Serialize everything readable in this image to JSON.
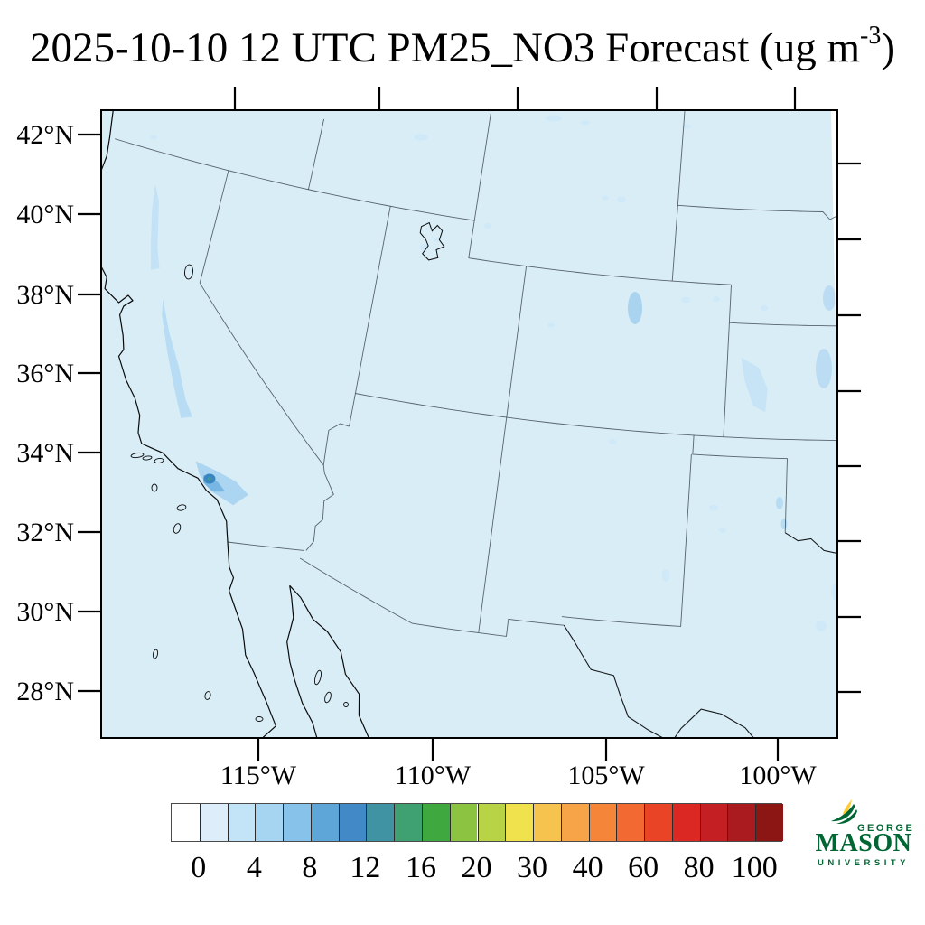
{
  "title": {
    "prefix": "2025-10-10 12 UTC PM25_NO3 Forecast (ug m",
    "sup": "-3",
    "suffix": ")"
  },
  "map": {
    "lat_labels": [
      "42°N",
      "40°N",
      "38°N",
      "36°N",
      "34°N",
      "32°N",
      "30°N",
      "28°N"
    ],
    "lon_labels": [
      "115°W",
      "110°W",
      "105°W",
      "100°W"
    ],
    "background_color": "#d9edf7",
    "region": "Southwestern United States and northern Mexico"
  },
  "colorbar": {
    "tick_labels": [
      "0",
      "4",
      "8",
      "12",
      "16",
      "20",
      "30",
      "40",
      "60",
      "80",
      "100"
    ],
    "levels": [
      0,
      2,
      4,
      6,
      8,
      10,
      12,
      14,
      16,
      18,
      20,
      25,
      30,
      35,
      40,
      50,
      60,
      70,
      80,
      90,
      100
    ],
    "colors": [
      "#ffffff",
      "#ddeefa",
      "#c3e3f6",
      "#a6d5f1",
      "#86c2e9",
      "#5fa6d8",
      "#4289c8",
      "#3f93a2",
      "#3fa172",
      "#3fa83f",
      "#8cc441",
      "#b9d347",
      "#f0e24d",
      "#f6c44e",
      "#f7a348",
      "#f58538",
      "#f26a31",
      "#ea4426",
      "#dc2823",
      "#c41f23",
      "#a91b1f",
      "#8c1613"
    ]
  },
  "logo": {
    "line1": "GEORGE",
    "line2": "MASON",
    "line3": "UNIVERSITY",
    "green": "#006633",
    "gold": "#ffcc33"
  },
  "chart_data": {
    "type": "map",
    "title": "2025-10-10 12 UTC PM25_NO3 Forecast (ug m-3)",
    "variable": "PM25_NO3",
    "units": "ug m-3",
    "forecast_time": "2025-10-10 12 UTC",
    "lat_ticks_deg_n": [
      42,
      40,
      38,
      36,
      34,
      32,
      30,
      28
    ],
    "lon_ticks_deg_w": [
      115,
      110,
      105,
      100
    ],
    "colorbar_levels": [
      0,
      2,
      4,
      6,
      8,
      10,
      12,
      14,
      16,
      18,
      20,
      25,
      30,
      35,
      40,
      50,
      60,
      70,
      80,
      90,
      100
    ],
    "colorbar_tick_labels": [
      0,
      4,
      8,
      12,
      16,
      20,
      30,
      40,
      60,
      80,
      100
    ],
    "notes": "Concentrations near background (0-2) over most of domain; localized maxima in California Central Valley and Los Angeles basin"
  }
}
